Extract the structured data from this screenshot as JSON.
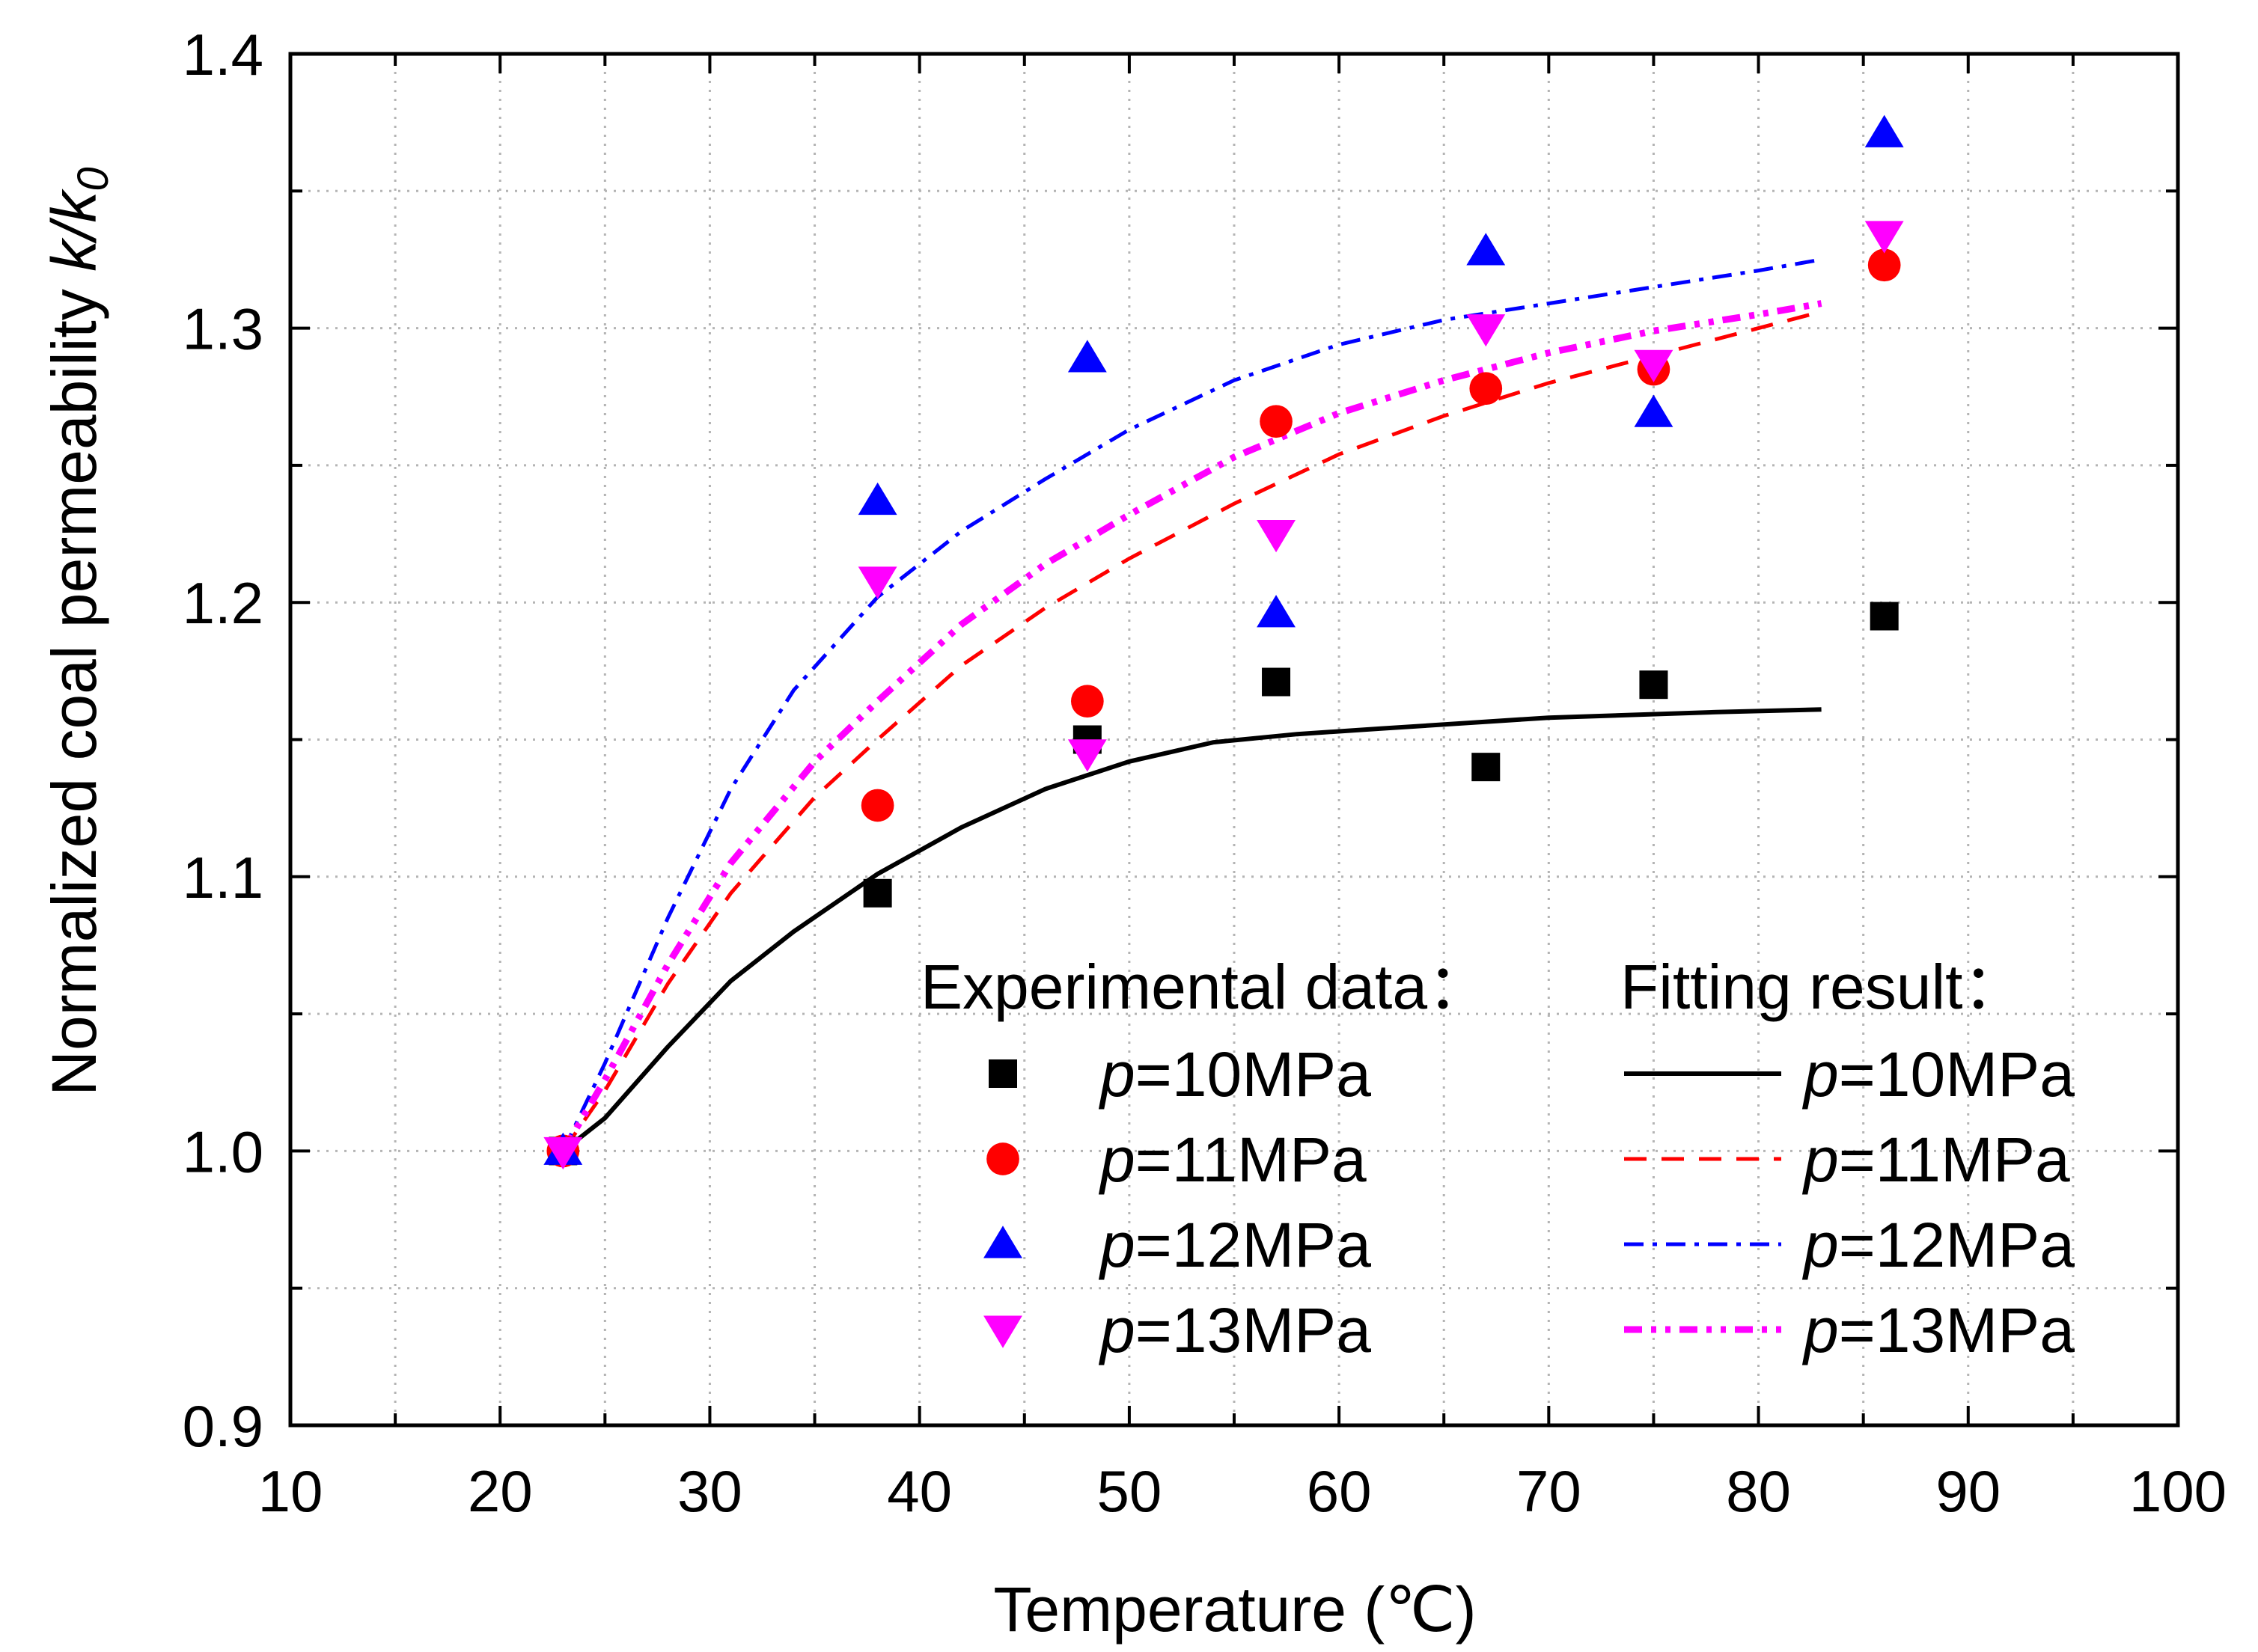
{
  "chart_data": {
    "type": "scatter",
    "xlabel": "Temperature (℃)",
    "ylabel_main": "Normalized coal permeability ",
    "ylabel_var": "k/k",
    "ylabel_sub": "0",
    "xlim": [
      10,
      100
    ],
    "ylim": [
      0.9,
      1.4
    ],
    "x_ticks": [
      "10",
      "20",
      "30",
      "40",
      "50",
      "60",
      "70",
      "80",
      "90",
      "100"
    ],
    "y_ticks": [
      "0.9",
      "1.0",
      "1.1",
      "1.2",
      "1.3",
      "1.4"
    ],
    "grid": true,
    "legend_position": "bottom-right",
    "legend": {
      "experimental_header": "Experimental data：",
      "fitting_header": "Fitting result："
    },
    "series": [
      {
        "name_var": "p",
        "name_rest": "=10MPa",
        "color": "#000000",
        "marker": "square",
        "dash": "solid",
        "points": [
          [
            23,
            1.0
          ],
          [
            38,
            1.094
          ],
          [
            48,
            1.15
          ],
          [
            57,
            1.171
          ],
          [
            67,
            1.14
          ],
          [
            75,
            1.17
          ],
          [
            86,
            1.195
          ]
        ],
        "fit": [
          [
            23,
            1.0
          ],
          [
            25,
            1.012
          ],
          [
            28,
            1.038
          ],
          [
            31,
            1.062
          ],
          [
            34,
            1.08
          ],
          [
            38,
            1.101
          ],
          [
            42,
            1.118
          ],
          [
            46,
            1.132
          ],
          [
            50,
            1.142
          ],
          [
            54,
            1.149
          ],
          [
            58,
            1.152
          ],
          [
            62,
            1.154
          ],
          [
            66,
            1.156
          ],
          [
            70,
            1.158
          ],
          [
            74,
            1.159
          ],
          [
            78,
            1.16
          ],
          [
            83,
            1.161
          ]
        ]
      },
      {
        "name_var": "p",
        "name_rest": "=11MPa",
        "color": "#ff0000",
        "marker": "circle",
        "dash": "dash",
        "points": [
          [
            23,
            1.0
          ],
          [
            38,
            1.126
          ],
          [
            48,
            1.164
          ],
          [
            57,
            1.266
          ],
          [
            67,
            1.278
          ],
          [
            75,
            1.285
          ],
          [
            86,
            1.323
          ]
        ],
        "fit": [
          [
            23,
            1.0
          ],
          [
            25,
            1.022
          ],
          [
            28,
            1.061
          ],
          [
            31,
            1.094
          ],
          [
            35,
            1.129
          ],
          [
            38,
            1.15
          ],
          [
            42,
            1.177
          ],
          [
            46,
            1.198
          ],
          [
            50,
            1.216
          ],
          [
            55,
            1.236
          ],
          [
            60,
            1.254
          ],
          [
            65,
            1.268
          ],
          [
            70,
            1.28
          ],
          [
            75,
            1.29
          ],
          [
            80,
            1.3
          ],
          [
            83,
            1.306
          ]
        ]
      },
      {
        "name_var": "p",
        "name_rest": "=12MPa",
        "color": "#0000ff",
        "marker": "triangle-up",
        "dash": "dashdot",
        "points": [
          [
            23,
            1.0
          ],
          [
            38,
            1.237
          ],
          [
            48,
            1.289
          ],
          [
            57,
            1.196
          ],
          [
            67,
            1.328
          ],
          [
            75,
            1.269
          ],
          [
            86,
            1.371
          ]
        ],
        "fit": [
          [
            23,
            1.0
          ],
          [
            25,
            1.032
          ],
          [
            28,
            1.085
          ],
          [
            31,
            1.132
          ],
          [
            34,
            1.168
          ],
          [
            38,
            1.202
          ],
          [
            42,
            1.226
          ],
          [
            46,
            1.245
          ],
          [
            50,
            1.263
          ],
          [
            55,
            1.281
          ],
          [
            60,
            1.294
          ],
          [
            65,
            1.303
          ],
          [
            70,
            1.309
          ],
          [
            75,
            1.315
          ],
          [
            80,
            1.321
          ],
          [
            83,
            1.325
          ]
        ]
      },
      {
        "name_var": "p",
        "name_rest": "=13MPa",
        "color": "#ff00ff",
        "marker": "triangle-down",
        "dash": "dashdotdot",
        "points": [
          [
            23,
            1.0
          ],
          [
            38,
            1.208
          ],
          [
            48,
            1.145
          ],
          [
            57,
            1.225
          ],
          [
            67,
            1.3
          ],
          [
            75,
            1.287
          ],
          [
            86,
            1.334
          ]
        ],
        "fit": [
          [
            23,
            1.0
          ],
          [
            25,
            1.026
          ],
          [
            28,
            1.068
          ],
          [
            31,
            1.105
          ],
          [
            35,
            1.142
          ],
          [
            38,
            1.164
          ],
          [
            42,
            1.192
          ],
          [
            46,
            1.214
          ],
          [
            50,
            1.232
          ],
          [
            55,
            1.253
          ],
          [
            60,
            1.269
          ],
          [
            65,
            1.281
          ],
          [
            70,
            1.291
          ],
          [
            75,
            1.299
          ],
          [
            80,
            1.305
          ],
          [
            83,
            1.309
          ]
        ]
      }
    ]
  }
}
